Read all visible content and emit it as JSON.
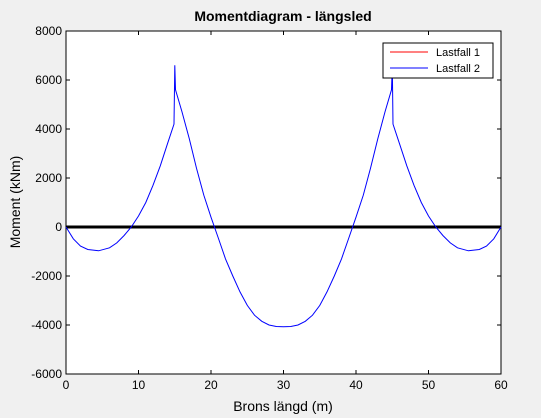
{
  "window": {
    "background": "#f0f0f0"
  },
  "chart_data": {
    "type": "line",
    "title": "Momentdiagram - längsled",
    "xlabel": "Brons längd (m)",
    "ylabel": "Moment (kNm)",
    "xlim": [
      0,
      60
    ],
    "ylim": [
      -6000,
      8000
    ],
    "xticks": [
      0,
      10,
      20,
      30,
      40,
      50,
      60
    ],
    "yticks": [
      -6000,
      -4000,
      -2000,
      0,
      2000,
      4000,
      6000,
      8000
    ],
    "grid": false,
    "legend": {
      "position": "top-right",
      "entries": [
        "Lastfall 1",
        "Lastfall 2"
      ]
    },
    "zero_line": {
      "y": 0,
      "color": "#000000"
    },
    "series": [
      {
        "name": "Lastfall 1",
        "color": "#ff0000",
        "x": [],
        "y": []
      },
      {
        "name": "Lastfall 2",
        "color": "#0000ff",
        "x": [
          0,
          1,
          2,
          3,
          4.5,
          6,
          7,
          8,
          9,
          10,
          11,
          12,
          13,
          14,
          14.9,
          15.0,
          15.1,
          16,
          17,
          18,
          19,
          20,
          21,
          22,
          23,
          24,
          25,
          26,
          27,
          28,
          29,
          30,
          31,
          32,
          33,
          34,
          35,
          36,
          37,
          38,
          39,
          40,
          41,
          42,
          43,
          44,
          44.9,
          45.0,
          45.1,
          46,
          47,
          48,
          49,
          50,
          51,
          52,
          53,
          54,
          55.5,
          57,
          58,
          59,
          60
        ],
        "y": [
          0,
          -480,
          -780,
          -920,
          -970,
          -850,
          -650,
          -350,
          0,
          450,
          1000,
          1700,
          2500,
          3400,
          4200,
          6600,
          5600,
          4700,
          3600,
          2400,
          1300,
          400,
          -450,
          -1300,
          -2000,
          -2650,
          -3200,
          -3600,
          -3850,
          -4000,
          -4060,
          -4070,
          -4060,
          -4000,
          -3850,
          -3600,
          -3200,
          -2650,
          -2000,
          -1300,
          -450,
          400,
          1300,
          2400,
          3600,
          4700,
          5600,
          6600,
          4200,
          3400,
          2500,
          1700,
          1000,
          450,
          0,
          -350,
          -650,
          -850,
          -970,
          -920,
          -780,
          -480,
          0
        ]
      }
    ]
  }
}
